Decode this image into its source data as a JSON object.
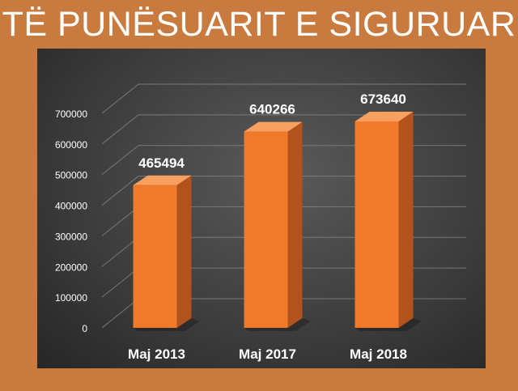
{
  "title": "TË PUNËSUARIT E SIGURUAR",
  "colors": {
    "page_background": "#C97A3E",
    "bar_front": "#F07A2A",
    "bar_side": "#B2521C",
    "bar_top": "#F8A060",
    "text_light": "#ffffff",
    "gridline": "#8a8a8a"
  },
  "chart_data": {
    "type": "bar",
    "title": "",
    "xlabel": "",
    "ylabel": "",
    "categories": [
      "Maj 2013",
      "Maj 2017",
      "Maj 2018"
    ],
    "values": [
      465494,
      640266,
      673640
    ],
    "value_labels": [
      "465494",
      "640266",
      "673640"
    ],
    "ylim": [
      0,
      700000
    ],
    "yticks": [
      0,
      100000,
      200000,
      300000,
      400000,
      500000,
      600000,
      700000
    ],
    "ytick_labels": [
      "0",
      "100000",
      "200000",
      "300000",
      "400000",
      "500000",
      "600000",
      "700000"
    ],
    "grid": true,
    "legend": "none",
    "style": "3d"
  }
}
